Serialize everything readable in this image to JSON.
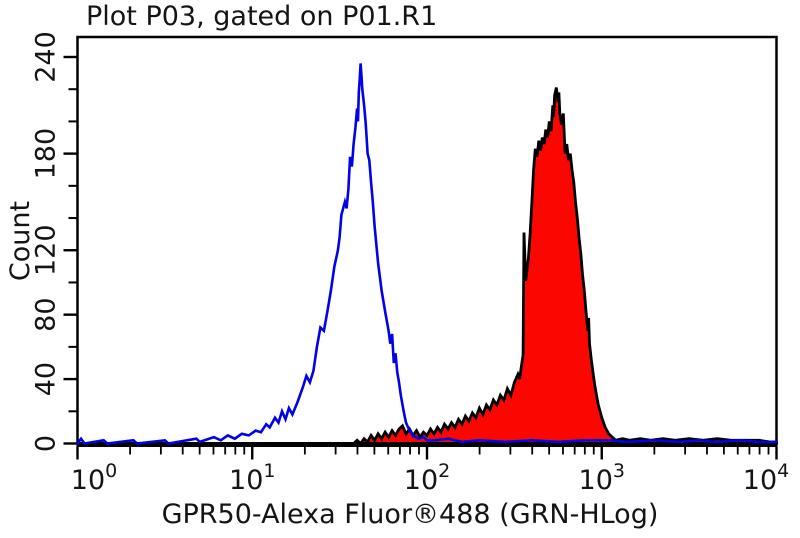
{
  "chart_data": {
    "type": "area",
    "title": "Plot P03, gated on P01.R1",
    "xlabel": "GPR50-Alexa Fluor®488 (GRN-HLog)",
    "ylabel": "Count",
    "x_scale": "log10",
    "xlim_exponents": [
      0,
      4
    ],
    "ylim": [
      0,
      240
    ],
    "grid": false,
    "legend": "none",
    "x_ticks": {
      "major_exponents": [
        0,
        1,
        2,
        3,
        4
      ],
      "major_labels": [
        "10^0",
        "10^1",
        "10^2",
        "10^3",
        "10^4"
      ],
      "minor_mantissas": [
        2,
        3,
        4,
        5,
        6,
        7,
        8,
        9
      ]
    },
    "y_ticks": {
      "major": [
        0,
        40,
        80,
        120,
        180,
        240
      ],
      "minor": [
        20,
        60,
        100,
        140,
        160,
        200,
        220
      ]
    },
    "colors": {
      "background": "#ffffff",
      "frame": "#000000",
      "text": "#141414",
      "blue_series": "#0202e6",
      "red_fill": "#fb0600",
      "red_outline": "#000000"
    },
    "series": [
      {
        "name": "red-filled-histogram",
        "style": "filled",
        "line_color": "#000000",
        "fill": "#fb0600",
        "points": [
          [
            0,
            0
          ],
          [
            1.58,
            0
          ],
          [
            1.6,
            2
          ],
          [
            1.62,
            0
          ],
          [
            1.64,
            3
          ],
          [
            1.66,
            1
          ],
          [
            1.68,
            5
          ],
          [
            1.7,
            2
          ],
          [
            1.72,
            6
          ],
          [
            1.74,
            3
          ],
          [
            1.76,
            7
          ],
          [
            1.78,
            4
          ],
          [
            1.8,
            8
          ],
          [
            1.82,
            5
          ],
          [
            1.84,
            9
          ],
          [
            1.86,
            11
          ],
          [
            1.88,
            6
          ],
          [
            1.9,
            9
          ],
          [
            1.92,
            5
          ],
          [
            1.94,
            8
          ],
          [
            1.96,
            4
          ],
          [
            1.98,
            7
          ],
          [
            2.0,
            5
          ],
          [
            2.02,
            9
          ],
          [
            2.04,
            6
          ],
          [
            2.06,
            10
          ],
          [
            2.08,
            7
          ],
          [
            2.1,
            12
          ],
          [
            2.12,
            9
          ],
          [
            2.14,
            13
          ],
          [
            2.16,
            10
          ],
          [
            2.18,
            15
          ],
          [
            2.2,
            12
          ],
          [
            2.22,
            17
          ],
          [
            2.24,
            14
          ],
          [
            2.26,
            19
          ],
          [
            2.28,
            16
          ],
          [
            2.3,
            22
          ],
          [
            2.32,
            18
          ],
          [
            2.34,
            24
          ],
          [
            2.36,
            21
          ],
          [
            2.38,
            27
          ],
          [
            2.4,
            24
          ],
          [
            2.42,
            30
          ],
          [
            2.44,
            27
          ],
          [
            2.46,
            34
          ],
          [
            2.48,
            30
          ],
          [
            2.5,
            38
          ],
          [
            2.52,
            43
          ],
          [
            2.53,
            40
          ],
          [
            2.54,
            48
          ],
          [
            2.55,
            55
          ],
          [
            2.555,
            131
          ],
          [
            2.565,
            101
          ],
          [
            2.58,
            115
          ],
          [
            2.59,
            130
          ],
          [
            2.6,
            150
          ],
          [
            2.61,
            170
          ],
          [
            2.62,
            183
          ],
          [
            2.63,
            178
          ],
          [
            2.64,
            188
          ],
          [
            2.65,
            182
          ],
          [
            2.66,
            190
          ],
          [
            2.67,
            186
          ],
          [
            2.68,
            195
          ],
          [
            2.69,
            190
          ],
          [
            2.7,
            200
          ],
          [
            2.71,
            194
          ],
          [
            2.72,
            210
          ],
          [
            2.725,
            203
          ],
          [
            2.73,
            216
          ],
          [
            2.74,
            221
          ],
          [
            2.75,
            212
          ],
          [
            2.755,
            218
          ],
          [
            2.76,
            205
          ],
          [
            2.77,
            198
          ],
          [
            2.78,
            205
          ],
          [
            2.79,
            180
          ],
          [
            2.8,
            186
          ],
          [
            2.81,
            176
          ],
          [
            2.82,
            180
          ],
          [
            2.83,
            170
          ],
          [
            2.84,
            162
          ],
          [
            2.85,
            150
          ],
          [
            2.86,
            140
          ],
          [
            2.87,
            128
          ],
          [
            2.88,
            118
          ],
          [
            2.89,
            105
          ],
          [
            2.9,
            95
          ],
          [
            2.91,
            82
          ],
          [
            2.92,
            70
          ],
          [
            2.925,
            78
          ],
          [
            2.93,
            62
          ],
          [
            2.94,
            52
          ],
          [
            2.95,
            44
          ],
          [
            2.96,
            36
          ],
          [
            2.97,
            30
          ],
          [
            2.98,
            24
          ],
          [
            3.0,
            16
          ],
          [
            3.02,
            10
          ],
          [
            3.04,
            6
          ],
          [
            3.06,
            4
          ],
          [
            3.08,
            2
          ],
          [
            3.12,
            3
          ],
          [
            3.16,
            2
          ],
          [
            3.22,
            3
          ],
          [
            3.28,
            2
          ],
          [
            3.35,
            3
          ],
          [
            3.42,
            2
          ],
          [
            3.5,
            3
          ],
          [
            3.58,
            2
          ],
          [
            3.66,
            3
          ],
          [
            3.74,
            2
          ],
          [
            3.82,
            2
          ],
          [
            3.9,
            2
          ],
          [
            3.96,
            1
          ],
          [
            4.0,
            1
          ]
        ]
      },
      {
        "name": "blue-open-histogram",
        "style": "open",
        "line_color": "#0202e6",
        "fill": "none",
        "points": [
          [
            0,
            0
          ],
          [
            0.02,
            3
          ],
          [
            0.04,
            0
          ],
          [
            0.15,
            2
          ],
          [
            0.17,
            0
          ],
          [
            0.32,
            2
          ],
          [
            0.34,
            0
          ],
          [
            0.5,
            2
          ],
          [
            0.52,
            0
          ],
          [
            0.68,
            3
          ],
          [
            0.7,
            1
          ],
          [
            0.78,
            4
          ],
          [
            0.82,
            2
          ],
          [
            0.86,
            5
          ],
          [
            0.9,
            3
          ],
          [
            0.94,
            6
          ],
          [
            0.98,
            5
          ],
          [
            1.02,
            8
          ],
          [
            1.05,
            7
          ],
          [
            1.08,
            12
          ],
          [
            1.1,
            10
          ],
          [
            1.13,
            16
          ],
          [
            1.15,
            13
          ],
          [
            1.17,
            20
          ],
          [
            1.19,
            15
          ],
          [
            1.21,
            22
          ],
          [
            1.23,
            18
          ],
          [
            1.26,
            26
          ],
          [
            1.29,
            35
          ],
          [
            1.31,
            42
          ],
          [
            1.33,
            38
          ],
          [
            1.35,
            45
          ],
          [
            1.37,
            60
          ],
          [
            1.39,
            72
          ],
          [
            1.41,
            70
          ],
          [
            1.43,
            82
          ],
          [
            1.45,
            95
          ],
          [
            1.47,
            110
          ],
          [
            1.49,
            120
          ],
          [
            1.5,
            128
          ],
          [
            1.51,
            142
          ],
          [
            1.53,
            150
          ],
          [
            1.54,
            146
          ],
          [
            1.55,
            158
          ],
          [
            1.56,
            178
          ],
          [
            1.57,
            172
          ],
          [
            1.58,
            186
          ],
          [
            1.59,
            196
          ],
          [
            1.6,
            208
          ],
          [
            1.605,
            200
          ],
          [
            1.61,
            218
          ],
          [
            1.615,
            226
          ],
          [
            1.62,
            236
          ],
          [
            1.625,
            228
          ],
          [
            1.63,
            220
          ],
          [
            1.64,
            210
          ],
          [
            1.65,
            198
          ],
          [
            1.66,
            180
          ],
          [
            1.67,
            176
          ],
          [
            1.68,
            162
          ],
          [
            1.69,
            150
          ],
          [
            1.7,
            135
          ],
          [
            1.72,
            112
          ],
          [
            1.74,
            95
          ],
          [
            1.76,
            82
          ],
          [
            1.78,
            70
          ],
          [
            1.79,
            62
          ],
          [
            1.8,
            68
          ],
          [
            1.81,
            50
          ],
          [
            1.82,
            56
          ],
          [
            1.83,
            44
          ],
          [
            1.84,
            38
          ],
          [
            1.85,
            30
          ],
          [
            1.86,
            24
          ],
          [
            1.87,
            18
          ],
          [
            1.88,
            13
          ],
          [
            1.9,
            8
          ],
          [
            1.92,
            5
          ],
          [
            1.95,
            3
          ],
          [
            1.98,
            4
          ],
          [
            2.0,
            2
          ],
          [
            2.05,
            2
          ],
          [
            2.12,
            3
          ],
          [
            2.2,
            1
          ],
          [
            2.3,
            2
          ],
          [
            2.45,
            1
          ],
          [
            2.6,
            2
          ],
          [
            2.75,
            1
          ],
          [
            2.9,
            2
          ],
          [
            3.05,
            2
          ],
          [
            3.15,
            1
          ],
          [
            3.3,
            2
          ],
          [
            3.45,
            1
          ],
          [
            3.55,
            2
          ],
          [
            3.65,
            1
          ],
          [
            3.8,
            2
          ],
          [
            3.9,
            1
          ],
          [
            4.0,
            1
          ]
        ]
      }
    ]
  }
}
